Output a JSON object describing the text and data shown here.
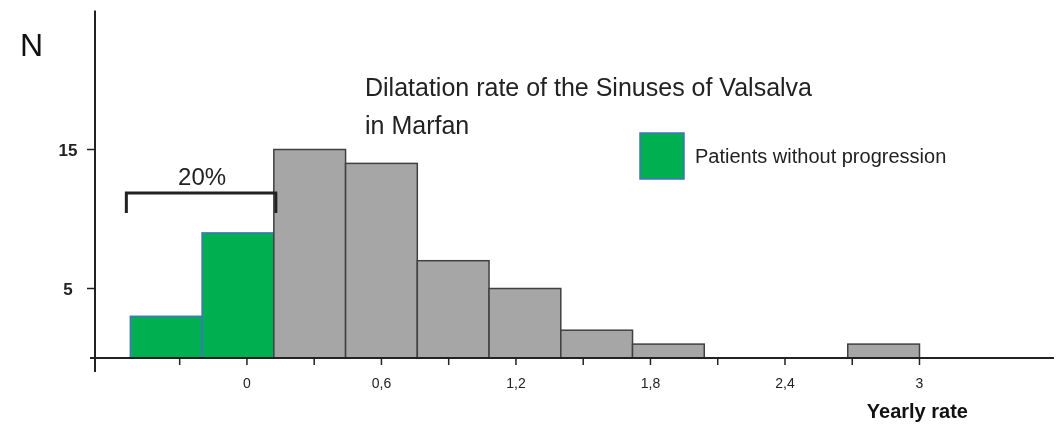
{
  "chart_data": {
    "type": "histogram",
    "title": "Dilatation rate of the Sinuses of Valsalva\nin Marfan",
    "xlabel": "Yearly rate",
    "ylabel": "N",
    "bins": [
      -0.52,
      -0.2,
      0.12,
      0.44,
      0.76,
      1.08,
      1.4,
      1.72,
      2.04,
      2.36,
      2.68,
      3.0
    ],
    "series": [
      {
        "name": "Patients without progression",
        "color": "#00b050",
        "values": [
          3,
          9,
          null,
          null,
          null,
          null,
          null,
          null,
          null,
          null,
          null
        ]
      },
      {
        "color": "#a6a6a6",
        "values": [
          null,
          null,
          15,
          14,
          7,
          5,
          2,
          1,
          0,
          0,
          1
        ]
      }
    ],
    "xlim": [
      -0.7,
      3.6
    ],
    "ylim": [
      0,
      25
    ],
    "xticks": [
      {
        "value": -0.3,
        "label": null
      },
      {
        "value": 0,
        "label": "0"
      },
      {
        "value": 0.3,
        "label": null
      },
      {
        "value": 0.6,
        "label": "0,6"
      },
      {
        "value": 0.9,
        "label": null
      },
      {
        "value": 1.2,
        "label": "1,2"
      },
      {
        "value": 1.5,
        "label": null
      },
      {
        "value": 1.8,
        "label": "1,8"
      },
      {
        "value": 2.1,
        "label": null
      },
      {
        "value": 2.4,
        "label": "2,4"
      },
      {
        "value": 2.7,
        "label": null
      },
      {
        "value": 3,
        "label": "3"
      }
    ],
    "yticks": [
      5,
      15
    ],
    "annotations": [
      "20%"
    ],
    "legend": "top right"
  }
}
